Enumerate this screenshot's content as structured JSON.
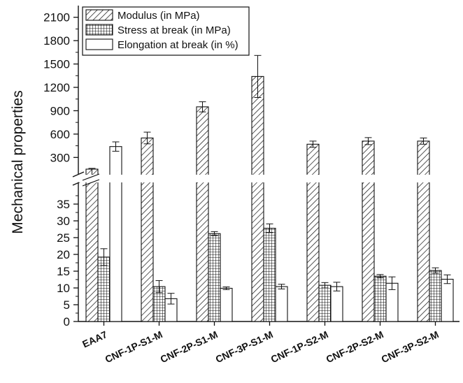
{
  "chart_data": {
    "type": "bar",
    "ylabel": "Mechanical properties",
    "xlabel": "",
    "categories": [
      "EAA7",
      "CNF-1P-S1-M",
      "CNF-2P-S1-M",
      "CNF-3P-S1-M",
      "CNF-1P-S2-M",
      "CNF-2P-S2-M",
      "CNF-3P-S2-M"
    ],
    "series": [
      {
        "name": "Modulus (in MPa)",
        "values": [
          150,
          550,
          950,
          1340,
          470,
          510,
          510
        ],
        "errors": [
          10,
          75,
          65,
          270,
          40,
          45,
          40
        ],
        "fill": "diagonal-hatch"
      },
      {
        "name": "Stress at break (in MPa)",
        "values": [
          19.2,
          10.4,
          26.2,
          27.8,
          10.8,
          13.5,
          15.2
        ],
        "errors": [
          2.5,
          1.8,
          0.6,
          1.3,
          0.8,
          0.5,
          0.8
        ],
        "fill": "crosshatch"
      },
      {
        "name": "Elongation at break (in %)",
        "values": [
          440,
          6.8,
          9.9,
          10.4,
          10.4,
          11.4,
          12.6
        ],
        "errors": [
          60,
          1.6,
          0.4,
          0.7,
          1.3,
          1.9,
          1.3
        ],
        "fill": "white"
      }
    ],
    "axis_break": {
      "lower_range": [
        0,
        40
      ],
      "upper_range": [
        150,
        2250
      ]
    },
    "lower_ticks": [
      "0",
      "5",
      "10",
      "15",
      "20",
      "25",
      "30",
      "35"
    ],
    "upper_ticks": [
      "300",
      "600",
      "900",
      "1200",
      "1500",
      "1800",
      "2100"
    ],
    "legend_position": "top-inside",
    "grid": false
  }
}
